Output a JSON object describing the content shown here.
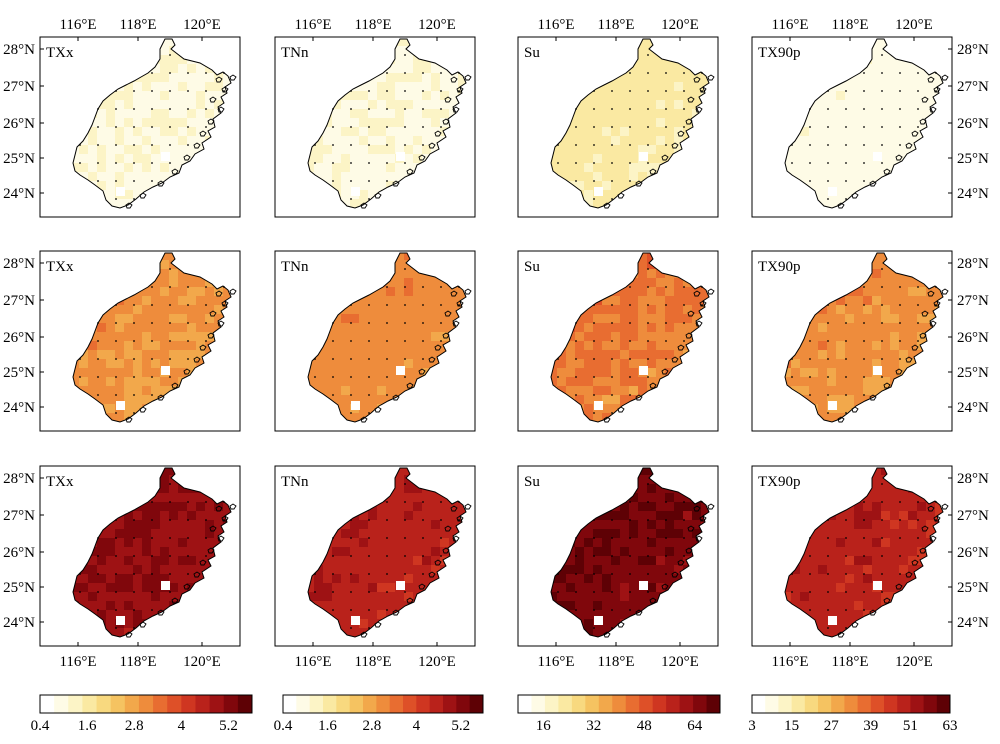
{
  "figure": {
    "lon_ticks": [
      "116°E",
      "118°E",
      "120°E"
    ],
    "lat_ticks": [
      "28°N",
      "27°N",
      "26°N",
      "25°N",
      "24°N"
    ],
    "rows": [
      {
        "panels": [
          {
            "title": "TXx",
            "colorbar": 0,
            "region_value": 0.75,
            "variation": 0.25
          },
          {
            "title": "TNn",
            "colorbar": 1,
            "region_value": 0.75,
            "variation": 0.3
          },
          {
            "title": "Su",
            "colorbar": 2,
            "region_value": 19,
            "variation": 4
          },
          {
            "title": "TX90p",
            "colorbar": 3,
            "region_value": 6,
            "variation": 2
          }
        ]
      },
      {
        "panels": [
          {
            "title": "TXx",
            "colorbar": 0,
            "region_value": 2.8,
            "variation": 0.45
          },
          {
            "title": "TNn",
            "colorbar": 1,
            "region_value": 2.9,
            "variation": 0.35
          },
          {
            "title": "Su",
            "colorbar": 2,
            "region_value": 40,
            "variation": 7
          },
          {
            "title": "TX90p",
            "colorbar": 3,
            "region_value": 30,
            "variation": 5
          }
        ]
      },
      {
        "panels": [
          {
            "title": "TXx",
            "colorbar": 0,
            "region_value": 5.0,
            "variation": 0.5
          },
          {
            "title": "TNn",
            "colorbar": 1,
            "region_value": 4.5,
            "variation": 0.4
          },
          {
            "title": "Su",
            "colorbar": 2,
            "region_value": 66,
            "variation": 6
          },
          {
            "title": "TX90p",
            "colorbar": 3,
            "region_value": 48,
            "variation": 5
          }
        ]
      }
    ],
    "colorbars": [
      {
        "min": 0.4,
        "max": 5.8,
        "ticks": [
          "0.4",
          "1.6",
          "2.8",
          "4",
          "5.2"
        ],
        "tick_values": [
          0.4,
          1.6,
          2.8,
          4.0,
          5.2
        ],
        "left_edge_label": true
      },
      {
        "min": 0.4,
        "max": 5.8,
        "ticks": [
          "0.4",
          "1.6",
          "2.8",
          "4",
          "5.2"
        ],
        "tick_values": [
          0.4,
          1.6,
          2.8,
          4.0,
          5.2
        ],
        "left_edge_label": true
      },
      {
        "min": 8,
        "max": 72,
        "ticks": [
          "16",
          "32",
          "48",
          "64"
        ],
        "tick_values": [
          16,
          32,
          48,
          64
        ],
        "left_edge_label": false
      },
      {
        "min": 3,
        "max": 63,
        "ticks": [
          "3",
          "15",
          "27",
          "39",
          "51",
          "63"
        ],
        "tick_values": [
          3,
          15,
          27,
          39,
          51,
          63
        ],
        "left_edge_label": true
      }
    ],
    "palette": [
      "#ffffff",
      "#fefbe6",
      "#fcf4c6",
      "#fae9a2",
      "#f8d97f",
      "#f5c361",
      "#f2a84b",
      "#ee8c3c",
      "#e86d31",
      "#de5028",
      "#cf3621",
      "#b9221b",
      "#9e1214",
      "#80070c",
      "#5e0105"
    ],
    "land_edge_color": "#000000"
  }
}
